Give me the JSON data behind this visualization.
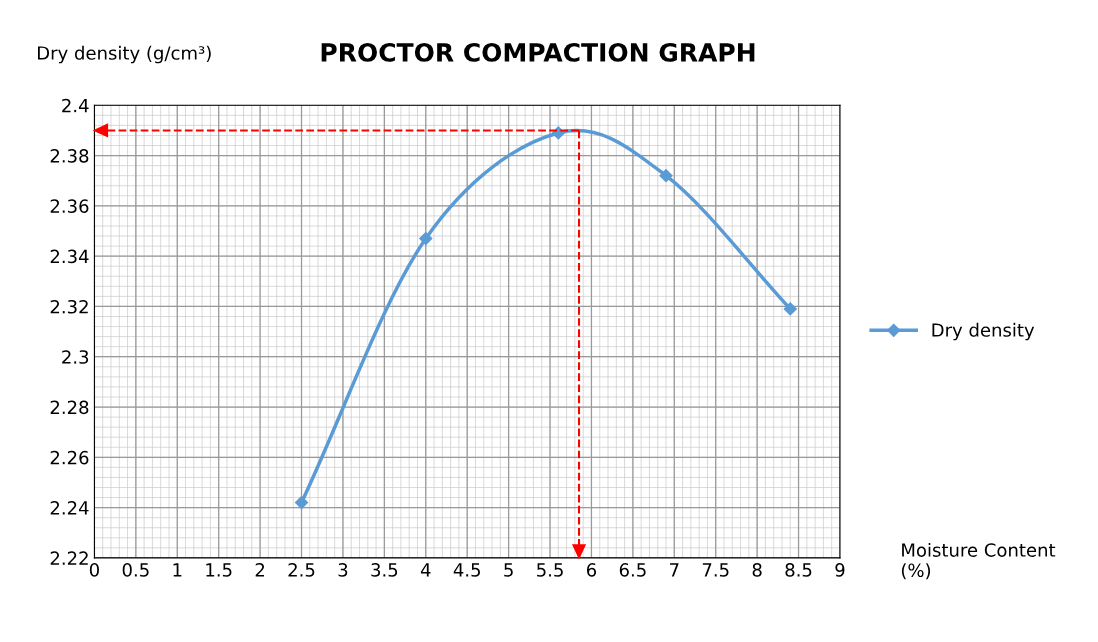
{
  "chart_data": {
    "type": "line",
    "title": "PROCTOR COMPACTION GRAPH",
    "ylabel": "Dry density (g/cm³)",
    "xlabel": "Moisture Content (%)",
    "x": [
      2.5,
      4,
      5.6,
      6.9,
      8.4
    ],
    "series": [
      {
        "name": "Dry density",
        "color": "#5b9bd5",
        "values": [
          2.242,
          2.347,
          2.389,
          2.372,
          2.319
        ]
      }
    ],
    "xlim": [
      0,
      9
    ],
    "xticks": [
      0,
      0.5,
      1,
      1.5,
      2,
      2.5,
      3,
      3.5,
      4,
      4.5,
      5,
      5.5,
      6,
      6.5,
      7,
      7.5,
      8,
      8.5,
      9
    ],
    "ylim": [
      2.22,
      2.4
    ],
    "yticks": [
      2.22,
      2.24,
      2.26,
      2.28,
      2.3,
      2.32,
      2.34,
      2.36,
      2.38,
      2.4
    ],
    "ref_lines": [
      {
        "axis": "y",
        "value": 2.39,
        "color": "#ff0000",
        "line_style": "dashed"
      },
      {
        "axis": "x",
        "value": 5.85,
        "color": "#ff0000",
        "line_style": "dashed"
      }
    ],
    "grid": true,
    "legend": "right",
    "marker": "diamond",
    "line_style": "solid"
  }
}
